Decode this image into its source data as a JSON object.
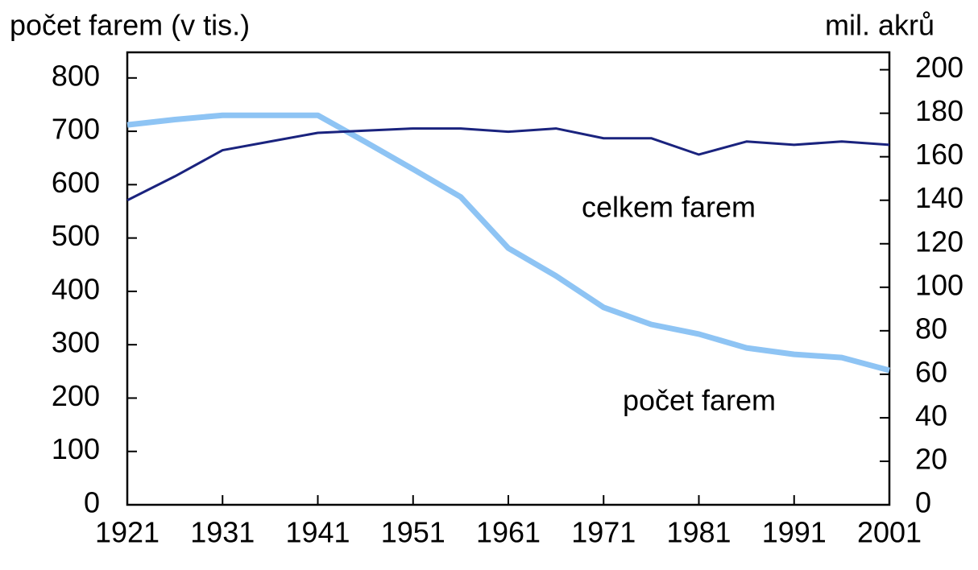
{
  "chart_data": {
    "type": "line",
    "y_label": "počet farem (v tis.)",
    "y2_label": "mil. akrů",
    "x": [
      1921,
      1926,
      1931,
      1936,
      1941,
      1946,
      1951,
      1956,
      1961,
      1966,
      1971,
      1976,
      1981,
      1986,
      1991,
      1996,
      2001
    ],
    "xlim": [
      1921,
      2001
    ],
    "xticks": [
      1921,
      1931,
      1941,
      1951,
      1961,
      1971,
      1981,
      1991,
      2001
    ],
    "ylim": [
      0,
      848
    ],
    "yticks": [
      0,
      100,
      200,
      300,
      400,
      500,
      600,
      700,
      800
    ],
    "y2lim": [
      0,
      208
    ],
    "y2ticks": [
      0,
      20,
      40,
      60,
      80,
      100,
      120,
      140,
      160,
      180,
      200
    ],
    "series": [
      {
        "name": "počet farem",
        "color": "#8ec4f4",
        "axis": "y",
        "values": [
          712,
          722,
          730,
          730,
          730,
          680,
          629,
          577,
          481,
          429,
          370,
          338,
          320,
          294,
          282,
          276,
          252
        ]
      },
      {
        "name": "celkem farem",
        "color": "#1a237e",
        "axis": "y2",
        "values": [
          140,
          151,
          163,
          167,
          171,
          172,
          173,
          173,
          171.5,
          173,
          168.5,
          168.5,
          161,
          167,
          165.5,
          167,
          165.5
        ]
      }
    ]
  }
}
